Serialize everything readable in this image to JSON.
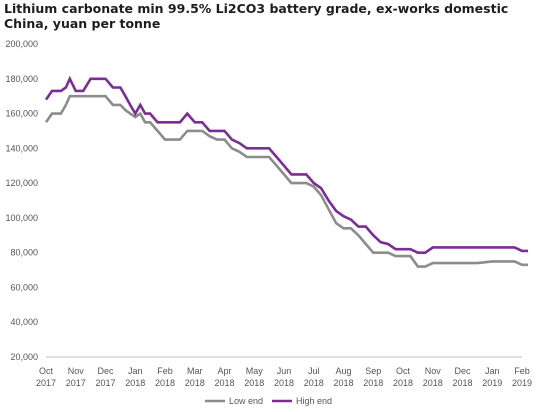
{
  "chart_data": {
    "type": "line",
    "title": "Lithium carbonate min 99.5% Li2CO3 battery grade, ex-works domestic China, yuan per tonne",
    "ylim": [
      20000,
      200000
    ],
    "yticks": [
      20000,
      40000,
      60000,
      80000,
      100000,
      120000,
      140000,
      160000,
      180000,
      200000
    ],
    "ytick_labels": [
      "20,000",
      "40,000",
      "60,000",
      "80,000",
      "100,000",
      "120,000",
      "140,000",
      "160,000",
      "180,000",
      "200,000"
    ],
    "x_ticks": [
      {
        "month": "Oct",
        "year": "2017"
      },
      {
        "month": "Nov",
        "year": "2017"
      },
      {
        "month": "Dec",
        "year": "2017"
      },
      {
        "month": "Jan",
        "year": "2018"
      },
      {
        "month": "Feb",
        "year": "2018"
      },
      {
        "month": "Mar",
        "year": "2018"
      },
      {
        "month": "Apr",
        "year": "2018"
      },
      {
        "month": "May",
        "year": "2018"
      },
      {
        "month": "Jun",
        "year": "2018"
      },
      {
        "month": "Jul",
        "year": "2018"
      },
      {
        "month": "Aug",
        "year": "2018"
      },
      {
        "month": "Sep",
        "year": "2018"
      },
      {
        "month": "Oct",
        "year": "2018"
      },
      {
        "month": "Nov",
        "year": "2018"
      },
      {
        "month": "Dec",
        "year": "2018"
      },
      {
        "month": "Jan",
        "year": "2019"
      },
      {
        "month": "Feb",
        "year": "2019"
      }
    ],
    "x_month_count": 17,
    "grid": false,
    "legend_position": "bottom-center",
    "series": [
      {
        "name": "Low end",
        "color": "#8c8c8c",
        "x": [
          0,
          0.2,
          0.33,
          0.5,
          0.67,
          0.8,
          1.0,
          1.25,
          1.5,
          1.75,
          2.0,
          2.25,
          2.5,
          2.67,
          2.83,
          3.0,
          3.17,
          3.33,
          3.5,
          3.75,
          4.0,
          4.25,
          4.5,
          4.75,
          5.0,
          5.25,
          5.5,
          5.75,
          6.0,
          6.25,
          6.5,
          6.75,
          7.0,
          7.25,
          7.5,
          7.75,
          8.0,
          8.25,
          8.5,
          8.75,
          9.0,
          9.25,
          9.5,
          9.75,
          10.0,
          10.25,
          10.5,
          10.75,
          11.0,
          11.25,
          11.5,
          11.75,
          12.0,
          12.25,
          12.5,
          12.75,
          13.0,
          13.5,
          14.0,
          14.5,
          15.0,
          15.5,
          15.75,
          16.0,
          16.2
        ],
        "values": [
          155000,
          160000,
          160000,
          160000,
          165000,
          170000,
          170000,
          170000,
          170000,
          170000,
          170000,
          165000,
          165000,
          162000,
          160000,
          158000,
          160000,
          155000,
          155000,
          150000,
          145000,
          145000,
          145000,
          150000,
          150000,
          150000,
          147000,
          145000,
          145000,
          140000,
          138000,
          135000,
          135000,
          135000,
          135000,
          130000,
          125000,
          120000,
          120000,
          120000,
          118000,
          113000,
          105000,
          97000,
          94000,
          94000,
          90000,
          85000,
          80000,
          80000,
          80000,
          78000,
          78000,
          78000,
          72000,
          72000,
          74000,
          74000,
          74000,
          74000,
          75000,
          75000,
          75000,
          73000,
          73000
        ]
      },
      {
        "name": "High end",
        "color": "#7b2d96",
        "x": [
          0,
          0.2,
          0.33,
          0.5,
          0.67,
          0.8,
          1.0,
          1.25,
          1.5,
          1.67,
          1.83,
          2.0,
          2.25,
          2.5,
          2.67,
          2.83,
          3.0,
          3.17,
          3.33,
          3.5,
          3.75,
          4.0,
          4.25,
          4.5,
          4.75,
          5.0,
          5.25,
          5.5,
          5.75,
          6.0,
          6.25,
          6.5,
          6.75,
          7.0,
          7.25,
          7.5,
          7.75,
          8.0,
          8.25,
          8.5,
          8.75,
          9.0,
          9.25,
          9.5,
          9.75,
          10.0,
          10.25,
          10.5,
          10.75,
          11.0,
          11.25,
          11.5,
          11.75,
          12.0,
          12.25,
          12.5,
          12.75,
          13.0,
          13.5,
          14.0,
          14.5,
          15.0,
          15.5,
          15.75,
          16.0,
          16.2
        ],
        "values": [
          168000,
          173000,
          173000,
          173000,
          175000,
          180000,
          173000,
          173000,
          180000,
          180000,
          180000,
          180000,
          175000,
          175000,
          170000,
          165000,
          160000,
          165000,
          160000,
          160000,
          155000,
          155000,
          155000,
          155000,
          160000,
          155000,
          155000,
          150000,
          150000,
          150000,
          145000,
          143000,
          140000,
          140000,
          140000,
          140000,
          135000,
          130000,
          125000,
          125000,
          125000,
          120000,
          117000,
          110000,
          104000,
          101000,
          99000,
          95000,
          95000,
          90000,
          86000,
          85000,
          82000,
          82000,
          82000,
          80000,
          80000,
          83000,
          83000,
          83000,
          83000,
          83000,
          83000,
          83000,
          81000,
          81000
        ]
      }
    ]
  }
}
